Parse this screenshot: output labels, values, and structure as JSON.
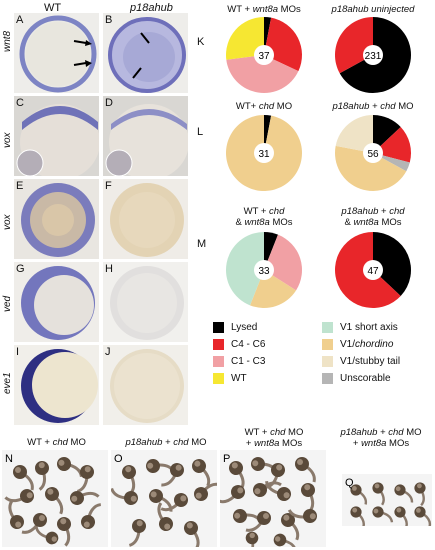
{
  "embryo_panels": {
    "header": {
      "wt": "WT",
      "mutant": "p18ahub"
    },
    "row_labels": [
      "wnt8",
      "vox",
      "vox",
      "ved",
      "eve1"
    ],
    "panel_letters": [
      "A",
      "B",
      "C",
      "D",
      "E",
      "F",
      "G",
      "H",
      "I",
      "J"
    ]
  },
  "pies": {
    "K": {
      "letter": "K",
      "titles": [
        "WT + wnt8a MOs",
        "p18ahub uninjected"
      ],
      "n": [
        "37",
        "231"
      ]
    },
    "L": {
      "letter": "L",
      "titles": [
        "WT+ chd MO",
        "p18ahub + chd MO"
      ],
      "n": [
        "31",
        "56"
      ]
    },
    "M": {
      "letter": "M",
      "titles": [
        "WT + chd & wnt8a MOs",
        "p18ahub + chd & wnt8a MOs"
      ],
      "title_lines": [
        [
          "WT + chd",
          "& wnt8a MOs"
        ],
        [
          "p18ahub + chd",
          "& wnt8a MOs"
        ]
      ],
      "n": [
        "33",
        "47"
      ]
    }
  },
  "legend": [
    {
      "label": "Lysed",
      "color": "#000000"
    },
    {
      "label": "C4 - C6",
      "color": "#e8262a"
    },
    {
      "label": "C1 - C3",
      "color": "#f1a0a4"
    },
    {
      "label": "WT",
      "color": "#f6e732"
    },
    {
      "label": "V1 short axis",
      "color": "#bfe3cf"
    },
    {
      "label": "V1/chordino",
      "color": "#f0cf8e"
    },
    {
      "label": "V1/stubby tail",
      "color": "#efe3c6"
    },
    {
      "label": "Unscorable",
      "color": "#b5b5b5"
    }
  ],
  "chart_data": [
    {
      "type": "pie",
      "title": "WT + wnt8a MOs",
      "n": 37,
      "slices": [
        {
          "label": "Lysed",
          "value": 3
        },
        {
          "label": "C4 - C6",
          "value": 29
        },
        {
          "label": "C1 - C3",
          "value": 41
        },
        {
          "label": "WT",
          "value": 27
        }
      ]
    },
    {
      "type": "pie",
      "title": "p18ahub uninjected",
      "n": 231,
      "slices": [
        {
          "label": "Lysed",
          "value": 67
        },
        {
          "label": "C4 - C6",
          "value": 33
        }
      ]
    },
    {
      "type": "pie",
      "title": "WT+ chd MO",
      "n": 31,
      "slices": [
        {
          "label": "Lysed",
          "value": 3
        },
        {
          "label": "V1/chordino",
          "value": 97
        }
      ]
    },
    {
      "type": "pie",
      "title": "p18ahub + chd MO",
      "n": 56,
      "slices": [
        {
          "label": "Lysed",
          "value": 13
        },
        {
          "label": "C4 - C6",
          "value": 16
        },
        {
          "label": "Unscorable",
          "value": 4
        },
        {
          "label": "V1/chordino",
          "value": 45
        },
        {
          "label": "V1/stubby tail",
          "value": 22
        }
      ]
    },
    {
      "type": "pie",
      "title": "WT + chd & wnt8a MOs",
      "n": 33,
      "slices": [
        {
          "label": "Lysed",
          "value": 6
        },
        {
          "label": "C1 - C3",
          "value": 28
        },
        {
          "label": "V1/chordino",
          "value": 22
        },
        {
          "label": "V1 short axis",
          "value": 44
        }
      ]
    },
    {
      "type": "pie",
      "title": "p18ahub + chd & wnt8a MOs",
      "n": 47,
      "slices": [
        {
          "label": "Lysed",
          "value": 37
        },
        {
          "label": "C4 - C6",
          "value": 63
        }
      ]
    }
  ],
  "bottom_panels": [
    {
      "letter": "N",
      "title": "WT + chd MO",
      "title_lines": [
        "WT + chd MO"
      ]
    },
    {
      "letter": "O",
      "title": "p18ahub + chd MO",
      "title_lines": [
        "p18ahub + chd MO"
      ]
    },
    {
      "letter": "P",
      "title": "WT + chd MO + wnt8a MOs",
      "title_lines": [
        "WT + chd MO",
        "+ wnt8a MOs"
      ]
    },
    {
      "letter": "Q",
      "title": "p18ahub + chd MO + wnt8a MOs",
      "title_lines": [
        "p18ahub + chd MO",
        "+ wnt8a MOs"
      ]
    }
  ]
}
